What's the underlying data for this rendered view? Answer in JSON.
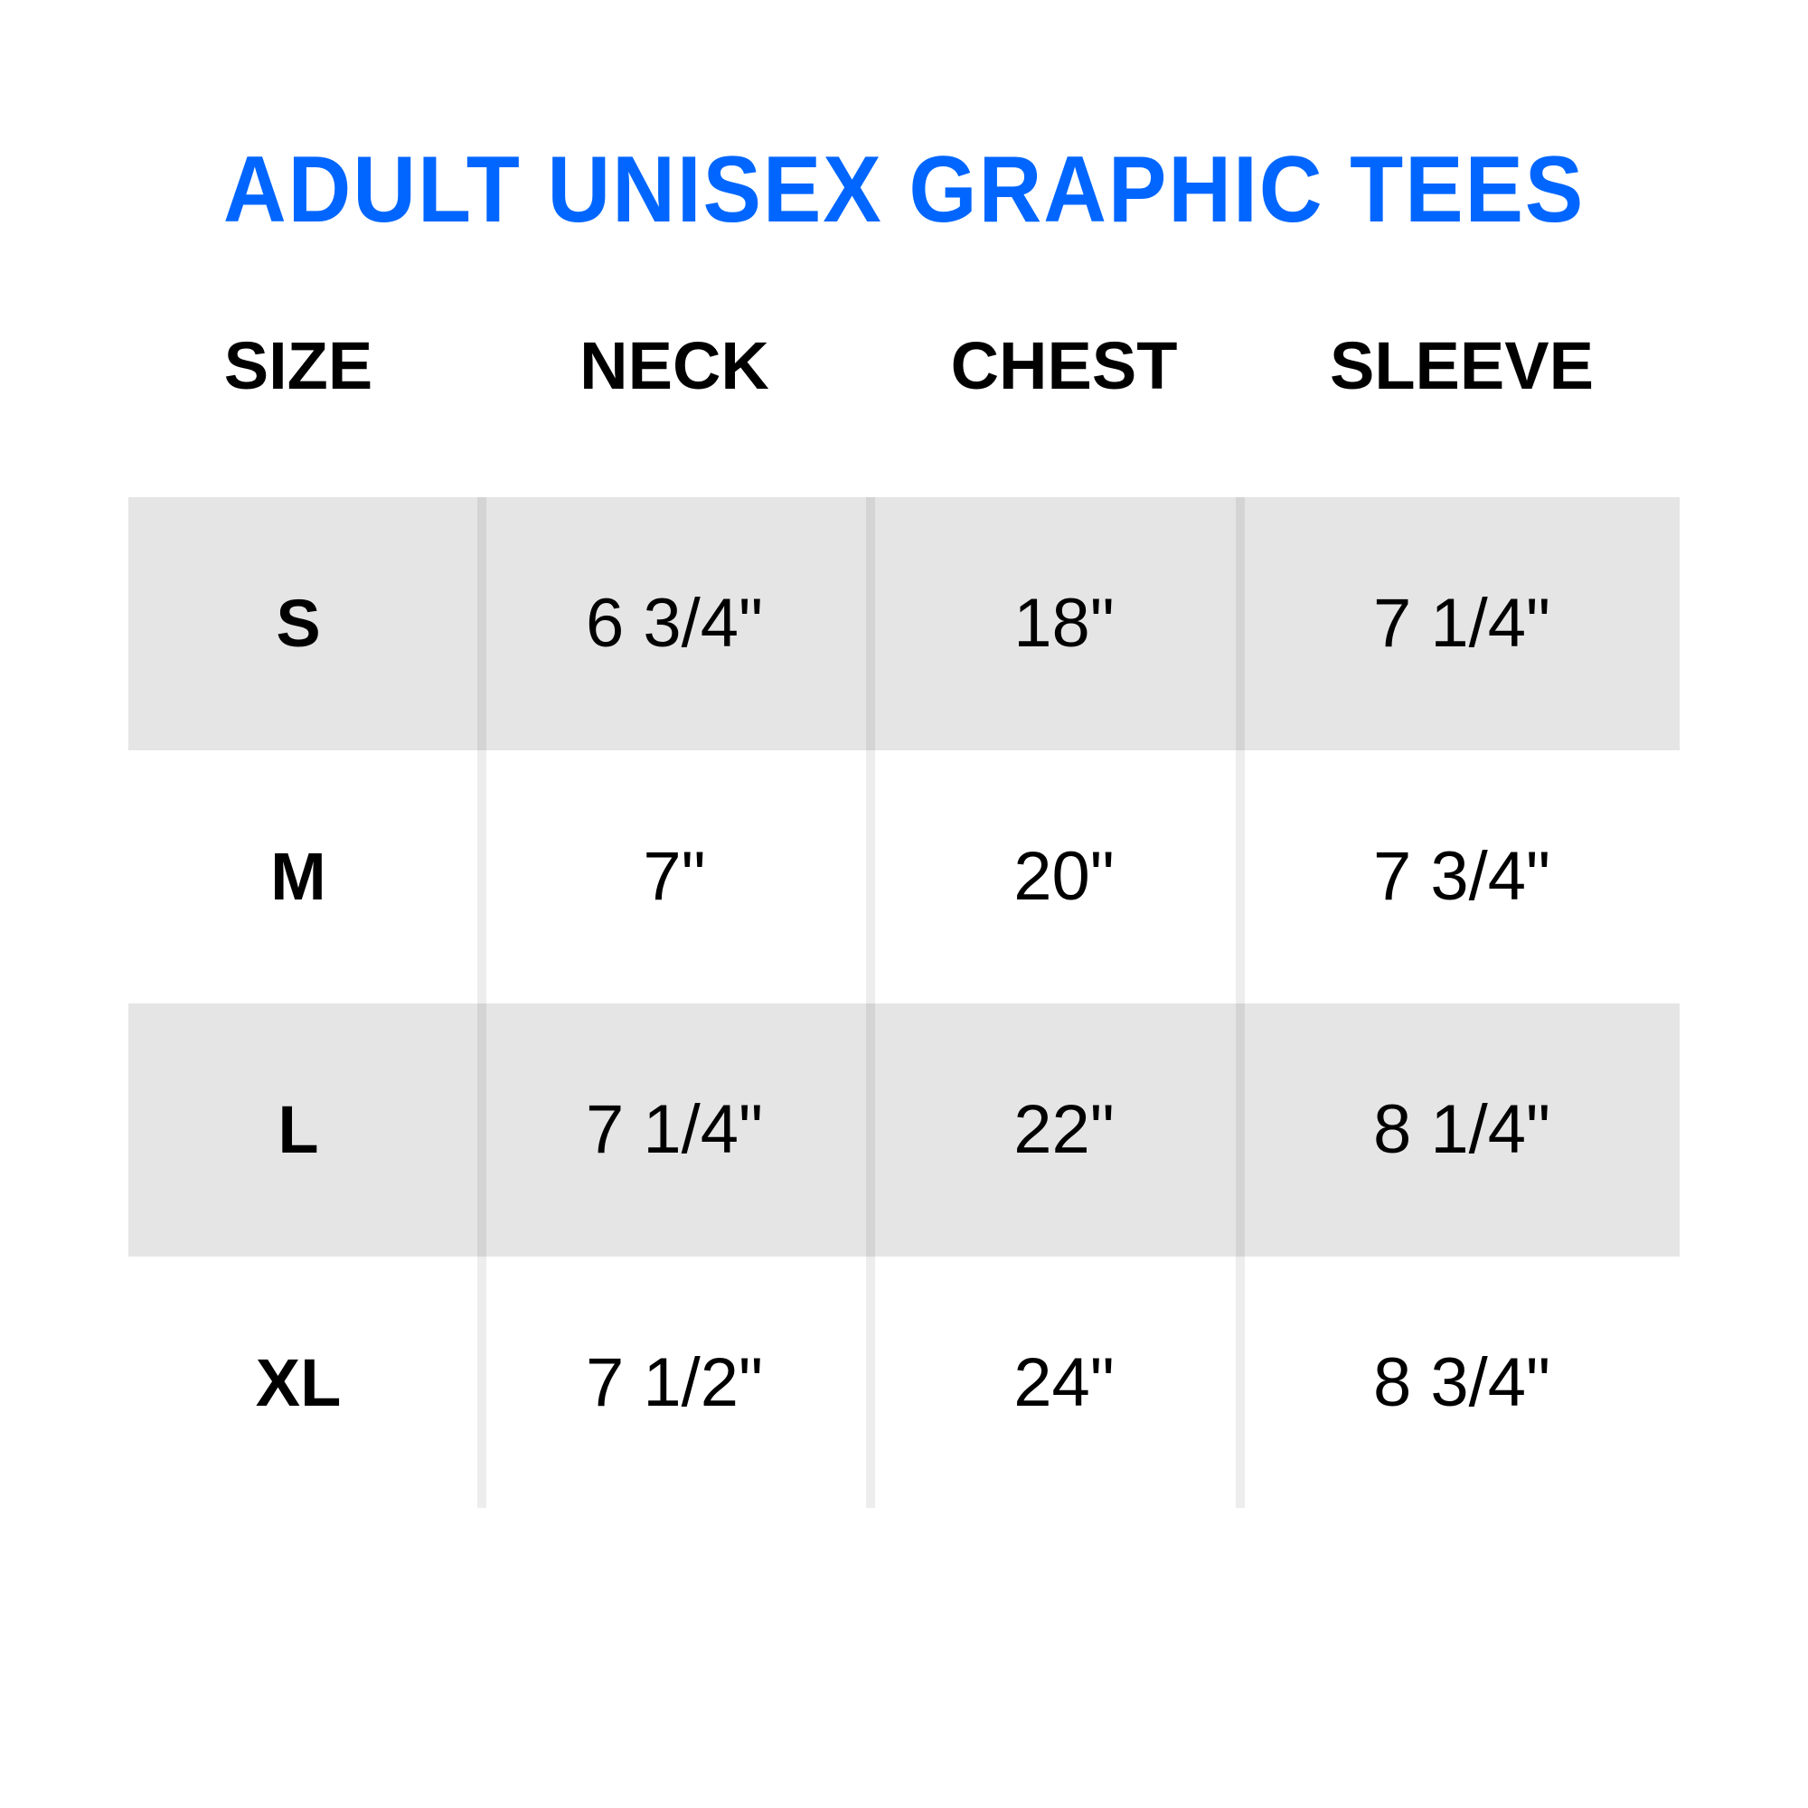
{
  "title": "ADULT UNISEX GRAPHIC TEES",
  "colors": {
    "title": "#0066ff",
    "stripe": "#e5e5e5"
  },
  "headers": [
    "SIZE",
    "NECK",
    "CHEST",
    "SLEEVE"
  ],
  "rows": [
    {
      "size": "S",
      "neck": "6 3/4\"",
      "chest": "18\"",
      "sleeve": "7 1/4\""
    },
    {
      "size": "M",
      "neck": "7\"",
      "chest": "20\"",
      "sleeve": "7 3/4\""
    },
    {
      "size": "L",
      "neck": "7 1/4\"",
      "chest": "22\"",
      "sleeve": "8 1/4\""
    },
    {
      "size": "XL",
      "neck": "7 1/2\"",
      "chest": "24\"",
      "sleeve": "8 3/4\""
    }
  ]
}
